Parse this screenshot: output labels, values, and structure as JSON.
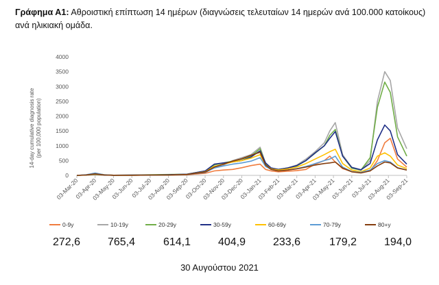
{
  "title": {
    "prefix": "Γράφημα Α1:",
    "text": "Αθροιστική επίπτωση 14 ημέρων (διαγνώσεις τελευταίων 14 ημερών ανά 100.000 κατοίκους) ανά ηλικιακή ομάδα."
  },
  "date_caption": "30 Αυγούστου 2021",
  "chart_data": {
    "type": "line",
    "ylabel_line1": "14-day cumulative diagnosis rate",
    "ylabel_line2": "(per 100,000 population)",
    "ylim": [
      0,
      4000
    ],
    "yticks": [
      "0",
      "500",
      "1000",
      "1500",
      "2000",
      "2500",
      "3000",
      "3500",
      "4000"
    ],
    "xticks": [
      "03-Mar-20",
      "03-Apr-20",
      "03-May-20",
      "03-Jun-20",
      "03-Jul-20",
      "03-Aug-20",
      "03-Sep-20",
      "03-Oct-20",
      "03-Nov-20",
      "03-Dec-20",
      "03-Jan-21",
      "03-Feb-21",
      "03-Mar-21",
      "03-Apr-21",
      "03-May-21",
      "03-Jun-21",
      "03-Jul-21",
      "03-Aug-21",
      "03-Sep-21"
    ],
    "x": [
      0,
      0.5,
      1,
      1.5,
      2,
      3,
      4,
      5,
      6,
      7,
      7.5,
      8,
      8.5,
      9,
      9.5,
      10,
      10.3,
      10.6,
      11,
      11.5,
      12,
      12.5,
      13,
      13.5,
      13.8,
      14.1,
      14.5,
      15,
      15.5,
      16,
      16.4,
      16.8,
      17.1,
      17.5,
      18
    ],
    "series": [
      {
        "name": "0-9y",
        "color": "#F07C3E",
        "values": [
          0,
          10,
          20,
          10,
          5,
          5,
          10,
          10,
          20,
          70,
          150,
          180,
          200,
          260,
          330,
          380,
          200,
          150,
          120,
          140,
          160,
          200,
          380,
          500,
          650,
          450,
          230,
          130,
          100,
          150,
          500,
          1100,
          1250,
          550,
          280
        ]
      },
      {
        "name": "10-19y",
        "color": "#A6A6A6",
        "values": [
          0,
          10,
          30,
          10,
          5,
          5,
          10,
          20,
          30,
          100,
          250,
          350,
          500,
          600,
          700,
          950,
          400,
          250,
          200,
          250,
          350,
          550,
          800,
          1100,
          1500,
          1780,
          700,
          260,
          170,
          500,
          2500,
          3500,
          3200,
          1600,
          900
        ]
      },
      {
        "name": "20-29y",
        "color": "#70AD47",
        "values": [
          0,
          15,
          40,
          15,
          5,
          10,
          20,
          30,
          40,
          150,
          350,
          420,
          480,
          550,
          650,
          900,
          400,
          230,
          200,
          250,
          320,
          500,
          750,
          1000,
          1350,
          1550,
          650,
          240,
          180,
          600,
          2300,
          3150,
          2800,
          1300,
          650
        ]
      },
      {
        "name": "30-59y",
        "color": "#1F2F86",
        "values": [
          0,
          15,
          60,
          15,
          5,
          10,
          15,
          20,
          40,
          150,
          380,
          420,
          450,
          500,
          620,
          830,
          420,
          250,
          200,
          250,
          330,
          500,
          760,
          1000,
          1250,
          1480,
          650,
          270,
          190,
          400,
          1200,
          1700,
          1500,
          700,
          380
        ]
      },
      {
        "name": "60-69y",
        "color": "#FFC000",
        "values": [
          0,
          15,
          70,
          20,
          5,
          5,
          10,
          15,
          30,
          120,
          300,
          380,
          450,
          500,
          580,
          700,
          350,
          220,
          180,
          220,
          280,
          400,
          550,
          700,
          800,
          880,
          400,
          180,
          120,
          250,
          650,
          760,
          650,
          350,
          230
        ]
      },
      {
        "name": "70-79y",
        "color": "#5B9BD5",
        "values": [
          0,
          20,
          80,
          20,
          5,
          5,
          10,
          15,
          30,
          100,
          250,
          320,
          380,
          420,
          480,
          600,
          300,
          200,
          150,
          180,
          230,
          300,
          400,
          500,
          550,
          650,
          280,
          130,
          100,
          180,
          400,
          500,
          450,
          260,
          180
        ]
      },
      {
        "name": "80+y",
        "color": "#843C0C",
        "values": [
          0,
          15,
          50,
          15,
          5,
          5,
          10,
          15,
          30,
          110,
          280,
          380,
          480,
          560,
          680,
          780,
          350,
          200,
          150,
          180,
          220,
          280,
          350,
          400,
          420,
          450,
          250,
          120,
          80,
          150,
          320,
          450,
          420,
          250,
          180
        ]
      }
    ]
  },
  "age_group_values": [
    "272,6",
    "765,4",
    "614,1",
    "404,9",
    "233,6",
    "179,2",
    "194,0"
  ]
}
